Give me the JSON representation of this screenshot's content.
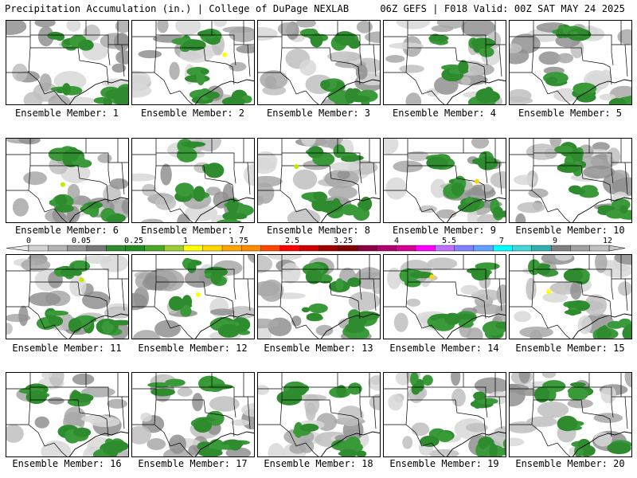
{
  "header": {
    "title_left": "Precipitation Accumulation (in.) | College of DuPage NEXLAB",
    "title_right": "06Z GEFS | F018 Valid: 00Z SAT MAY 24 2025"
  },
  "members": [
    {
      "label": "Ensemble Member: 1",
      "max_amount": 0.75,
      "max_color": "#228b22"
    },
    {
      "label": "Ensemble Member: 2",
      "max_amount": 1.5,
      "max_color": "#ffff00"
    },
    {
      "label": "Ensemble Member: 3",
      "max_amount": 0.75,
      "max_color": "#228b22"
    },
    {
      "label": "Ensemble Member: 4",
      "max_amount": 0.75,
      "max_color": "#228b22"
    },
    {
      "label": "Ensemble Member: 5",
      "max_amount": 0.75,
      "max_color": "#228b22"
    },
    {
      "label": "Ensemble Member: 6",
      "max_amount": 1.25,
      "max_color": "#c8e600"
    },
    {
      "label": "Ensemble Member: 7",
      "max_amount": 0.75,
      "max_color": "#228b22"
    },
    {
      "label": "Ensemble Member: 8",
      "max_amount": 1.25,
      "max_color": "#c8e600"
    },
    {
      "label": "Ensemble Member: 9",
      "max_amount": 1.75,
      "max_color": "#ffd700"
    },
    {
      "label": "Ensemble Member: 10",
      "max_amount": 0.75,
      "max_color": "#228b22"
    },
    {
      "label": "Ensemble Member: 11",
      "max_amount": 1.25,
      "max_color": "#c8e600"
    },
    {
      "label": "Ensemble Member: 12",
      "max_amount": 1.5,
      "max_color": "#ffff00"
    },
    {
      "label": "Ensemble Member: 13",
      "max_amount": 0.75,
      "max_color": "#228b22"
    },
    {
      "label": "Ensemble Member: 14",
      "max_amount": 1.75,
      "max_color": "#ffd700"
    },
    {
      "label": "Ensemble Member: 15",
      "max_amount": 1.5,
      "max_color": "#ffff00"
    },
    {
      "label": "Ensemble Member: 16",
      "max_amount": 0.75,
      "max_color": "#228b22"
    },
    {
      "label": "Ensemble Member: 17",
      "max_amount": 0.75,
      "max_color": "#228b22"
    },
    {
      "label": "Ensemble Member: 18",
      "max_amount": 0.75,
      "max_color": "#228b22"
    },
    {
      "label": "Ensemble Member: 19",
      "max_amount": 0.75,
      "max_color": "#228b22"
    },
    {
      "label": "Ensemble Member: 20",
      "max_amount": 1.0,
      "max_color": "#3cb043"
    }
  ],
  "colorbar": {
    "labels": [
      "0",
      "0.05",
      "0.25",
      "1",
      "1.75",
      "2.5",
      "3.25",
      "4",
      "5.5",
      "7",
      "9",
      "12"
    ],
    "colors": [
      "#d2d2d2",
      "#b4b4b4",
      "#969696",
      "#787878",
      "#2e8b2e",
      "#228b22",
      "#4aa829",
      "#9acd32",
      "#ffff00",
      "#ffd700",
      "#ffa500",
      "#ff8c00",
      "#ff4500",
      "#ff0000",
      "#d00000",
      "#a00000",
      "#800000",
      "#8b0045",
      "#b0006e",
      "#d4008e",
      "#ff00ff",
      "#c070ff",
      "#8080ff",
      "#60a0ff",
      "#00ffff",
      "#40d8d8",
      "#30b0b0",
      "#808080",
      "#a0a0a0",
      "#c0c0c0"
    ]
  }
}
